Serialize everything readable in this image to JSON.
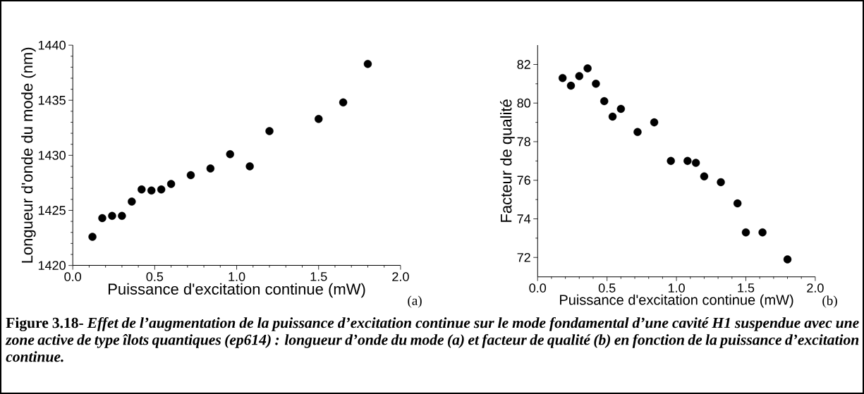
{
  "chart_data": [
    {
      "type": "scatter",
      "xlabel": "Puissance d'excitation continue (mW)",
      "ylabel": "Longueur d'onde du mode (nm)",
      "color": "#000000",
      "marker": "circle",
      "x": [
        0.12,
        0.18,
        0.24,
        0.3,
        0.36,
        0.42,
        0.48,
        0.54,
        0.6,
        0.72,
        0.84,
        0.96,
        1.08,
        1.2,
        1.5,
        1.65,
        1.8
      ],
      "values": [
        1422.6,
        1424.3,
        1424.5,
        1424.5,
        1425.8,
        1426.9,
        1426.8,
        1426.9,
        1427.4,
        1428.2,
        1428.8,
        1430.1,
        1429.0,
        1432.2,
        1433.3,
        1434.8,
        1438.3
      ],
      "xlim": [
        0,
        2
      ],
      "ylim": [
        1420,
        1440
      ],
      "xticks": [
        {
          "value": 0,
          "label": "0.0"
        },
        {
          "value": 0.5,
          "label": "0.5"
        },
        {
          "value": 1,
          "label": "1.0"
        },
        {
          "value": 1.5,
          "label": "1.5"
        },
        {
          "value": 2,
          "label": "2.0"
        }
      ],
      "yticks": [
        1420,
        1425,
        1430,
        1435,
        1440
      ],
      "annotations": [
        "(a)"
      ]
    },
    {
      "type": "scatter",
      "xlabel": "Puissance d'excitation continue (mW)",
      "ylabel": "Facteur de qualité",
      "color": "#000000",
      "marker": "circle",
      "x": [
        0.18,
        0.24,
        0.3,
        0.36,
        0.42,
        0.48,
        0.54,
        0.6,
        0.72,
        0.84,
        0.96,
        1.08,
        1.14,
        1.2,
        1.32,
        1.44,
        1.5,
        1.62,
        1.8
      ],
      "values": [
        81.3,
        80.9,
        81.4,
        81.8,
        81.0,
        80.1,
        79.3,
        79.7,
        78.5,
        79.0,
        77.0,
        77.0,
        76.9,
        76.2,
        75.9,
        74.8,
        73.3,
        73.3,
        71.9
      ],
      "xlim": [
        0,
        2
      ],
      "ylim": [
        71,
        83
      ],
      "xticks": [
        {
          "value": 0,
          "label": "0.0"
        },
        {
          "value": 0.5,
          "label": "0.5"
        },
        {
          "value": 1,
          "label": "1.0"
        },
        {
          "value": 1.5,
          "label": "1.5"
        },
        {
          "value": 2,
          "label": "2.0"
        }
      ],
      "yticks": [
        72,
        74,
        76,
        78,
        80,
        82
      ],
      "annotations": [
        "(b)",
        "**Figure 3.18-** *Effet de l’augmentation de la puissance d’excitation continue sur le mode fondamental d’une cavité H1 suspendue avec une zone active de type îlots quantiques (ep614) : longueur d’onde du mode (a) et facteur de qualité (b) en fonction de la puissance d’excitation continue.*"
      ]
    }
  ]
}
